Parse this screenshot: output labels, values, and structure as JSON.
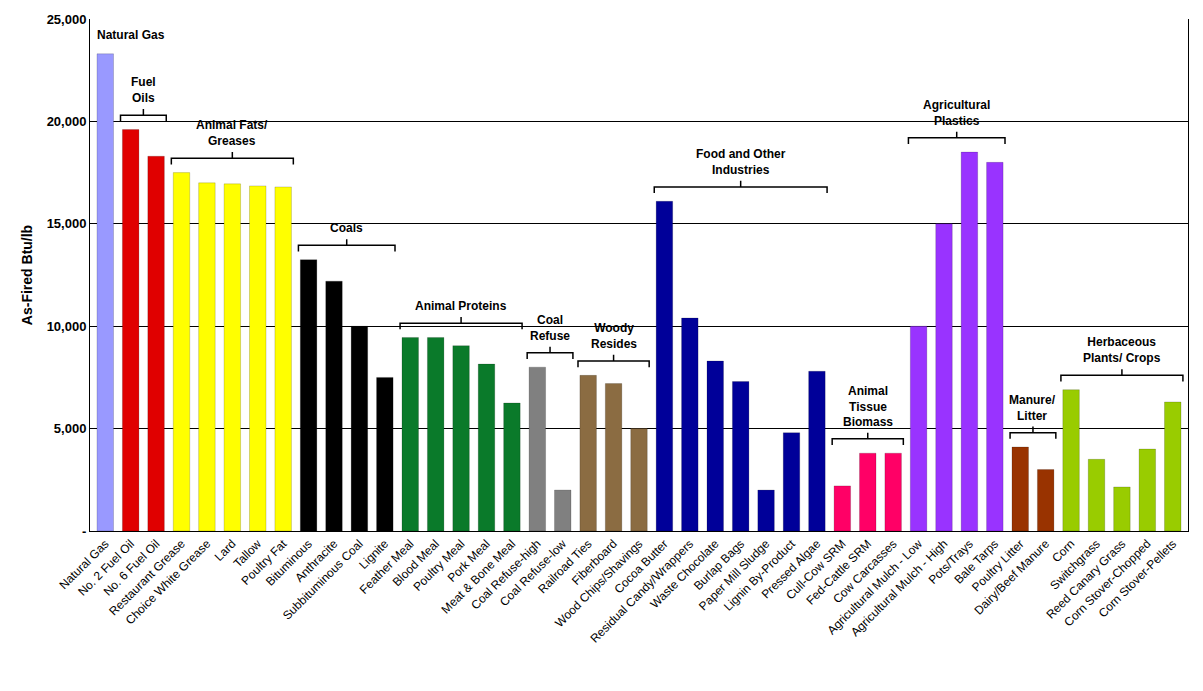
{
  "chart_data": {
    "type": "bar",
    "ylabel": "As-Fired Btu/lb",
    "categories": [
      "Natural Gas",
      "No. 2 Fuel Oil",
      "No. 6 Fuel Oil",
      "Restaurant Grease",
      "Choice White Grease",
      "Lard",
      "Tallow",
      "Poultry Fat",
      "Bituminous",
      "Anthracite",
      "Subbituminous Coal",
      "Lignite",
      "Feather Meal",
      "Blood Meal",
      "Poultry Meal",
      "Pork Meal",
      "Meat & Bone Meal",
      "Coal Refuse-high",
      "Coal Refuse-low",
      "Railroad Ties",
      "Fiberboard",
      "Wood Chips/Shavings",
      "Cocoa Butter",
      "Residual Candy/Wrappers",
      "Waste Chocolate",
      "Burlap Bags",
      "Paper Mill Sludge",
      "Lignin By-Product",
      "Pressed Algae",
      "Cull-Cow SRM",
      "Fed-Cattle SRM",
      "Cow Carcasses",
      "Agricultural Mulch - Low",
      "Agricultural Mulch - High",
      "Pots/Trays",
      "Bale Tarps",
      "Poultry Litter",
      "Dairy/Beef Manure",
      "Corn",
      "Switchgrass",
      "Reed Canary Grass",
      "Corn Stover-Chopped",
      "Corn Stover-Pellets"
    ],
    "values": [
      23300,
      19600,
      18300,
      17500,
      17000,
      16950,
      16850,
      16800,
      13250,
      12200,
      10000,
      7500,
      9450,
      9450,
      9050,
      8150,
      6250,
      8000,
      2000,
      7600,
      7200,
      5000,
      16100,
      10400,
      8300,
      7300,
      2000,
      4800,
      7800,
      2200,
      3800,
      3800,
      10000,
      15000,
      18500,
      18000,
      4100,
      3000,
      6900,
      3500,
      2150,
      4000,
      6300
    ],
    "colors": [
      "#9999ff",
      "#e00000",
      "#e00000",
      "#ffff00",
      "#ffff00",
      "#ffff00",
      "#ffff00",
      "#ffff00",
      "#000000",
      "#000000",
      "#000000",
      "#000000",
      "#0a7a2a",
      "#0a7a2a",
      "#0a7a2a",
      "#0a7a2a",
      "#0a7a2a",
      "#808080",
      "#808080",
      "#8b6c42",
      "#8b6c42",
      "#8b6c42",
      "#000099",
      "#000099",
      "#000099",
      "#000099",
      "#000099",
      "#000099",
      "#000099",
      "#ff0066",
      "#ff0066",
      "#ff0066",
      "#9933ff",
      "#9933ff",
      "#9933ff",
      "#9933ff",
      "#993300",
      "#993300",
      "#99cc00",
      "#99cc00",
      "#99cc00",
      "#99cc00",
      "#99cc00"
    ],
    "ylim": [
      0,
      25000
    ],
    "yticks": [
      {
        "value": 0,
        "label": "-"
      },
      {
        "value": 5000,
        "label": "5,000"
      },
      {
        "value": 10000,
        "label": "10,000"
      },
      {
        "value": 15000,
        "label": "15,000"
      },
      {
        "value": 20000,
        "label": "20,000"
      },
      {
        "value": 25000,
        "label": "25,000"
      }
    ],
    "grid": true,
    "annotations": [
      {
        "text": "Natural Gas",
        "from": "Natural Gas",
        "to": "Natural Gas"
      },
      {
        "text": "Fuel Oils",
        "from": "No. 2 Fuel Oil",
        "to": "No. 6 Fuel Oil"
      },
      {
        "text": "Animal Fats/ Greases",
        "from": "Restaurant Grease",
        "to": "Poultry Fat"
      },
      {
        "text": "Coals",
        "from": "Bituminous",
        "to": "Lignite"
      },
      {
        "text": "Animal Proteins",
        "from": "Feather Meal",
        "to": "Meat & Bone Meal"
      },
      {
        "text": "Coal Refuse",
        "from": "Coal Refuse-high",
        "to": "Coal Refuse-low"
      },
      {
        "text": "Woody Resides",
        "from": "Railroad Ties",
        "to": "Wood Chips/Shavings"
      },
      {
        "text": "Food and Other Industries",
        "from": "Cocoa Butter",
        "to": "Pressed Algae"
      },
      {
        "text": "Animal Tissue Biomass",
        "from": "Cull-Cow SRM",
        "to": "Cow Carcasses"
      },
      {
        "text": "Agricultural Plastics",
        "from": "Agricultural Mulch - Low",
        "to": "Bale Tarps"
      },
      {
        "text": "Manure/ Litter",
        "from": "Poultry Litter",
        "to": "Dairy/Beef Manure"
      },
      {
        "text": "Herbaceous Plants/ Crops",
        "from": "Corn",
        "to": "Corn Stover-Pellets"
      }
    ]
  }
}
